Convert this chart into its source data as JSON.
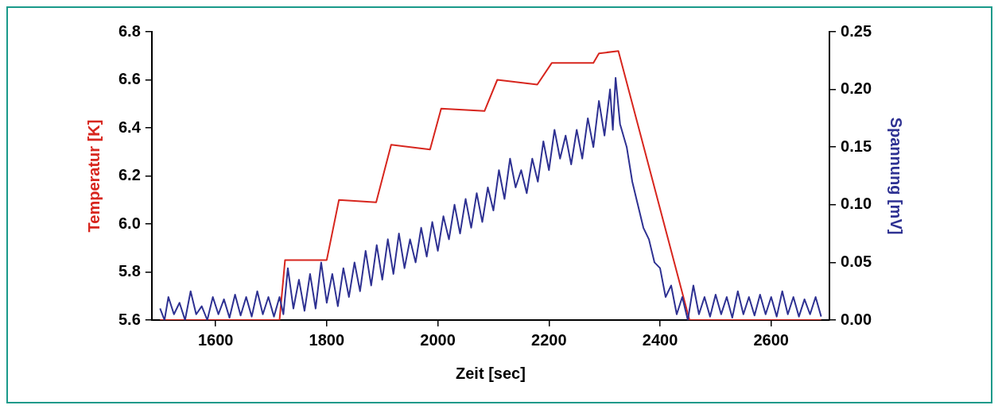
{
  "chart_data": {
    "type": "line",
    "xlabel": "Zeit [sec]",
    "ylabel": "Temperatur [K]",
    "y2label": "Spannung [mV]",
    "xlim": [
      1485,
      2705
    ],
    "xticks": [
      1600,
      1800,
      2000,
      2200,
      2400,
      2600
    ],
    "ylim": [
      5.6,
      6.8
    ],
    "yticks": [
      5.6,
      5.8,
      {
        "value": 6,
        "label": "6.0"
      },
      6.2,
      6.4,
      6.6,
      6.8
    ],
    "y2lim": [
      0,
      0.25
    ],
    "y2ticks": [
      {
        "value": 0,
        "label": "0.00"
      },
      {
        "value": 0.05,
        "label": "0.05"
      },
      {
        "value": 0.1,
        "label": "0.10"
      },
      {
        "value": 0.15,
        "label": "0.15"
      },
      {
        "value": 0.2,
        "label": "0.20"
      },
      {
        "value": 0.25,
        "label": "0.25"
      }
    ],
    "grid": false,
    "legend": false,
    "marker": "none",
    "line_style": "solid",
    "series": [
      {
        "color": "#2e3192",
        "axis": "y2",
        "x": [
          1500,
          1508,
          1515,
          1525,
          1535,
          1545,
          1555,
          1565,
          1575,
          1585,
          1595,
          1605,
          1615,
          1625,
          1635,
          1645,
          1655,
          1665,
          1675,
          1685,
          1695,
          1705,
          1715,
          1722,
          1730,
          1740,
          1750,
          1760,
          1770,
          1780,
          1790,
          1800,
          1810,
          1820,
          1830,
          1840,
          1850,
          1860,
          1870,
          1880,
          1890,
          1900,
          1910,
          1920,
          1930,
          1940,
          1950,
          1960,
          1970,
          1980,
          1990,
          2000,
          2010,
          2020,
          2030,
          2040,
          2050,
          2060,
          2070,
          2080,
          2090,
          2100,
          2110,
          2120,
          2130,
          2140,
          2150,
          2160,
          2170,
          2180,
          2190,
          2200,
          2210,
          2220,
          2230,
          2240,
          2250,
          2260,
          2270,
          2280,
          2290,
          2300,
          2310,
          2315,
          2320,
          2328,
          2340,
          2350,
          2360,
          2370,
          2380,
          2390,
          2400,
          2410,
          2420,
          2430,
          2440,
          2450,
          2460,
          2470,
          2480,
          2490,
          2500,
          2510,
          2520,
          2530,
          2540,
          2550,
          2560,
          2570,
          2580,
          2590,
          2600,
          2610,
          2620,
          2630,
          2640,
          2650,
          2660,
          2670,
          2680,
          2690
        ],
        "values": [
          0.01,
          0,
          0.02,
          0.005,
          0.015,
          0,
          0.025,
          0.005,
          0.012,
          0,
          0.02,
          0.005,
          0.018,
          0.002,
          0.022,
          0.004,
          0.02,
          0.003,
          0.025,
          0.005,
          0.02,
          0.003,
          0.02,
          0.005,
          0.045,
          0.01,
          0.035,
          0.008,
          0.04,
          0.01,
          0.05,
          0.015,
          0.04,
          0.012,
          0.045,
          0.02,
          0.05,
          0.025,
          0.06,
          0.03,
          0.065,
          0.035,
          0.07,
          0.04,
          0.075,
          0.045,
          0.07,
          0.05,
          0.08,
          0.055,
          0.085,
          0.06,
          0.09,
          0.07,
          0.1,
          0.075,
          0.105,
          0.08,
          0.11,
          0.085,
          0.115,
          0.095,
          0.13,
          0.105,
          0.14,
          0.115,
          0.13,
          0.11,
          0.14,
          0.12,
          0.155,
          0.13,
          0.165,
          0.14,
          0.16,
          0.135,
          0.165,
          0.14,
          0.175,
          0.15,
          0.19,
          0.16,
          0.2,
          0.165,
          0.21,
          0.17,
          0.15,
          0.12,
          0.1,
          0.08,
          0.07,
          0.05,
          0.045,
          0.02,
          0.03,
          0.005,
          0.02,
          0,
          0.03,
          0.005,
          0.02,
          0.003,
          0.022,
          0.005,
          0.02,
          0.002,
          0.025,
          0.005,
          0.02,
          0.004,
          0.022,
          0.005,
          0.02,
          0.003,
          0.025,
          0.005,
          0.02,
          0.003,
          0.018,
          0.005,
          0.02,
          0.003
        ]
      },
      {
        "color": "#d7261e",
        "axis": "y",
        "x": [
          1500,
          1715,
          1725,
          1800,
          1822,
          1889,
          1916,
          1986,
          2006,
          2084,
          2107,
          2179,
          2205,
          2280,
          2290,
          2325,
          2453,
          2690
        ],
        "values": [
          5.6,
          5.6,
          5.85,
          5.85,
          6.1,
          6.09,
          6.33,
          6.31,
          6.48,
          6.47,
          6.6,
          6.58,
          6.67,
          6.67,
          6.71,
          6.72,
          5.6,
          5.6
        ]
      }
    ]
  }
}
